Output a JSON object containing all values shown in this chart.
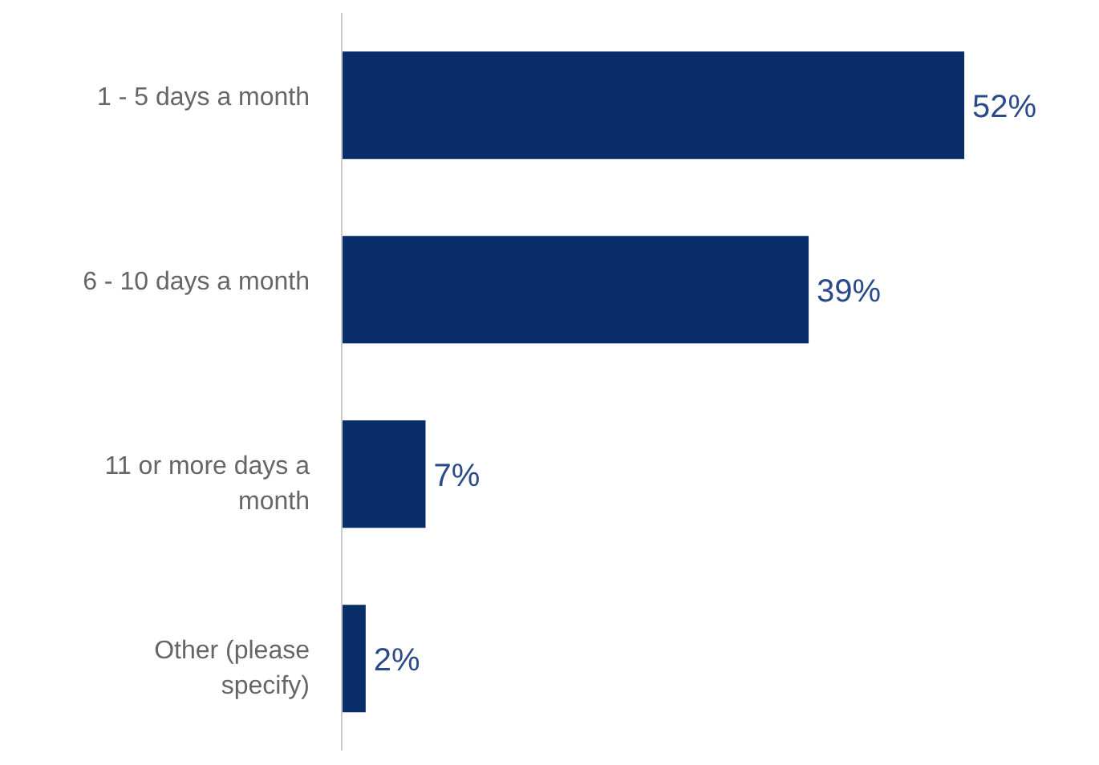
{
  "chart_data": {
    "type": "bar",
    "orientation": "horizontal",
    "categories": [
      "1 - 5 days a month",
      "6 - 10 days a month",
      "11 or more days a month",
      "Other (please specify)"
    ],
    "values": [
      52,
      39,
      7,
      2
    ],
    "color": "#082d69",
    "data_labels": true,
    "value_labels": [
      "52%",
      "39%",
      "7%",
      "2%"
    ]
  }
}
